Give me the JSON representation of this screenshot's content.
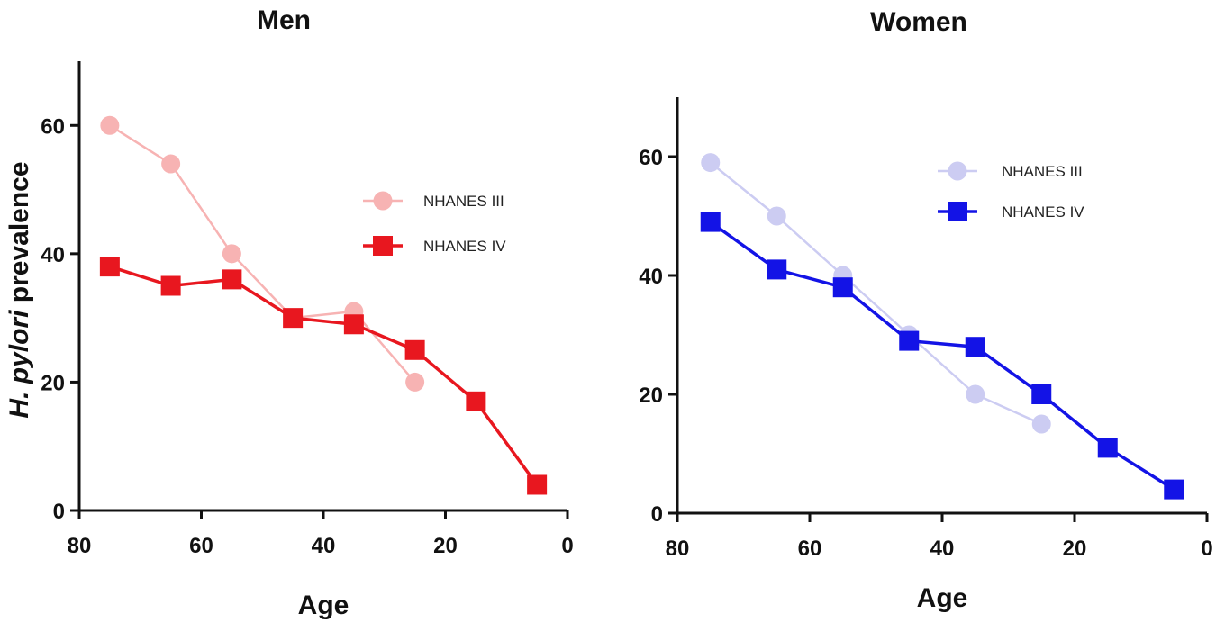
{
  "chart_data": [
    {
      "type": "line",
      "title": "Men",
      "xlabel": "Age",
      "ylabel_italic": "H. pylori",
      "ylabel_rest": " prevalence",
      "xlim": [
        80,
        0
      ],
      "ylim": [
        0,
        70
      ],
      "xticks": [
        80,
        60,
        40,
        20,
        0
      ],
      "yticks": [
        0,
        20,
        40,
        60
      ],
      "legend_position": "center-right",
      "series": [
        {
          "name": "NHANES III",
          "marker": "circle",
          "color": "#f7b3b3",
          "x": [
            75,
            65,
            55,
            45,
            35,
            25
          ],
          "y": [
            60,
            54,
            40,
            30,
            31,
            20
          ]
        },
        {
          "name": "NHANES IV",
          "marker": "square",
          "color": "#e8171f",
          "x": [
            75,
            65,
            55,
            45,
            35,
            25,
            15,
            5
          ],
          "y": [
            38,
            35,
            36,
            30,
            29,
            25,
            17,
            4
          ]
        }
      ]
    },
    {
      "type": "line",
      "title": "Women",
      "xlabel": "Age",
      "xlim": [
        80,
        0
      ],
      "ylim": [
        0,
        70
      ],
      "xticks": [
        80,
        60,
        40,
        20,
        0
      ],
      "yticks": [
        0,
        20,
        40,
        60
      ],
      "legend_position": "top-right",
      "series": [
        {
          "name": "NHANES III",
          "marker": "circle",
          "color": "#ccccf2",
          "x": [
            75,
            65,
            55,
            45,
            35,
            25
          ],
          "y": [
            59,
            50,
            40,
            30,
            20,
            15
          ]
        },
        {
          "name": "NHANES IV",
          "marker": "square",
          "color": "#1313e6",
          "x": [
            75,
            65,
            55,
            45,
            35,
            25,
            15,
            5
          ],
          "y": [
            49,
            41,
            38,
            29,
            28,
            20,
            11,
            4
          ]
        }
      ]
    }
  ]
}
